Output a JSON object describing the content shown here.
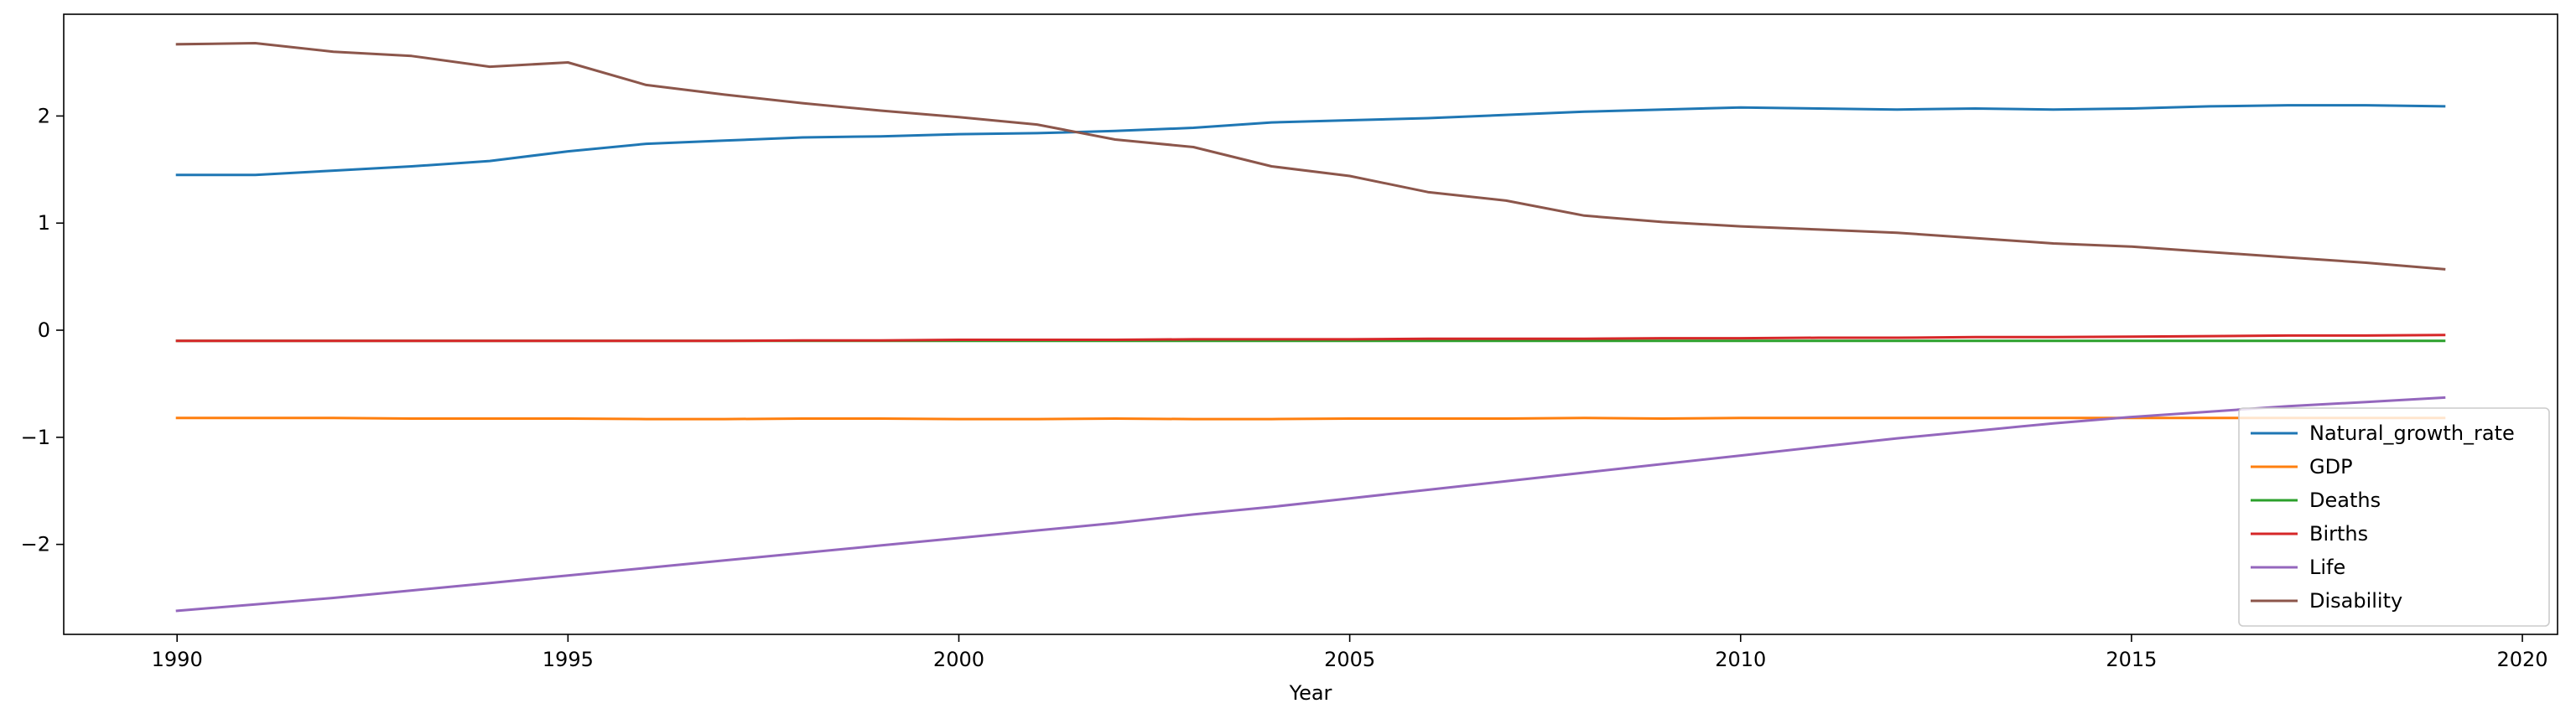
{
  "chart_data": {
    "type": "line",
    "title": "",
    "xlabel": "Year",
    "ylabel": "",
    "xlim": [
      1988.55,
      2020.45
    ],
    "ylim": [
      -2.84,
      2.95
    ],
    "grid": false,
    "legend_position": "lower-right",
    "x_ticks": [
      1990,
      1995,
      2000,
      2005,
      2010,
      2015,
      2020
    ],
    "y_ticks": [
      -2,
      -1,
      0,
      1,
      2
    ],
    "y_tick_labels": [
      "−2",
      "−1",
      "0",
      "1",
      "2"
    ],
    "x": [
      1990,
      1991,
      1992,
      1993,
      1994,
      1995,
      1996,
      1997,
      1998,
      1999,
      2000,
      2001,
      2002,
      2003,
      2004,
      2005,
      2006,
      2007,
      2008,
      2009,
      2010,
      2011,
      2012,
      2013,
      2014,
      2015,
      2016,
      2017,
      2018,
      2019
    ],
    "series": [
      {
        "name": "Natural_growth_rate",
        "color": "#1f77b4",
        "values": [
          1.45,
          1.45,
          1.49,
          1.53,
          1.58,
          1.67,
          1.74,
          1.77,
          1.8,
          1.81,
          1.83,
          1.84,
          1.86,
          1.89,
          1.94,
          1.96,
          1.98,
          2.01,
          2.04,
          2.06,
          2.08,
          2.07,
          2.06,
          2.07,
          2.06,
          2.07,
          2.09,
          2.1,
          2.1,
          2.09
        ]
      },
      {
        "name": "GDP",
        "color": "#ff7f0e",
        "values": [
          -0.82,
          -0.82,
          -0.82,
          -0.825,
          -0.825,
          -0.825,
          -0.83,
          -0.83,
          -0.825,
          -0.825,
          -0.83,
          -0.83,
          -0.825,
          -0.83,
          -0.83,
          -0.825,
          -0.825,
          -0.825,
          -0.82,
          -0.825,
          -0.82,
          -0.82,
          -0.82,
          -0.82,
          -0.82,
          -0.82,
          -0.82,
          -0.82,
          -0.82,
          -0.82
        ]
      },
      {
        "name": "Deaths",
        "color": "#2ca02c",
        "values": [
          -0.1,
          -0.1,
          -0.1,
          -0.1,
          -0.1,
          -0.1,
          -0.1,
          -0.1,
          -0.1,
          -0.1,
          -0.1,
          -0.1,
          -0.1,
          -0.1,
          -0.1,
          -0.1,
          -0.1,
          -0.1,
          -0.1,
          -0.1,
          -0.1,
          -0.1,
          -0.1,
          -0.1,
          -0.1,
          -0.1,
          -0.1,
          -0.1,
          -0.1,
          -0.1
        ]
      },
      {
        "name": "Births",
        "color": "#d62728",
        "values": [
          -0.1,
          -0.1,
          -0.1,
          -0.1,
          -0.1,
          -0.1,
          -0.1,
          -0.1,
          -0.095,
          -0.095,
          -0.09,
          -0.09,
          -0.09,
          -0.085,
          -0.085,
          -0.085,
          -0.08,
          -0.08,
          -0.08,
          -0.075,
          -0.075,
          -0.07,
          -0.07,
          -0.065,
          -0.065,
          -0.06,
          -0.055,
          -0.05,
          -0.05,
          -0.045
        ]
      },
      {
        "name": "Life",
        "color": "#9467bd",
        "values": [
          -2.62,
          -2.56,
          -2.5,
          -2.43,
          -2.36,
          -2.29,
          -2.22,
          -2.15,
          -2.08,
          -2.01,
          -1.94,
          -1.87,
          -1.8,
          -1.72,
          -1.65,
          -1.57,
          -1.49,
          -1.41,
          -1.33,
          -1.25,
          -1.17,
          -1.09,
          -1.01,
          -0.94,
          -0.87,
          -0.81,
          -0.76,
          -0.71,
          -0.67,
          -0.63
        ]
      },
      {
        "name": "Disability",
        "color": "#8c564b",
        "values": [
          2.67,
          2.68,
          2.6,
          2.56,
          2.46,
          2.5,
          2.29,
          2.2,
          2.12,
          2.05,
          1.99,
          1.92,
          1.78,
          1.71,
          1.53,
          1.44,
          1.29,
          1.21,
          1.07,
          1.01,
          0.97,
          0.94,
          0.91,
          0.86,
          0.81,
          0.78,
          0.73,
          0.68,
          0.63,
          0.57
        ]
      }
    ]
  }
}
